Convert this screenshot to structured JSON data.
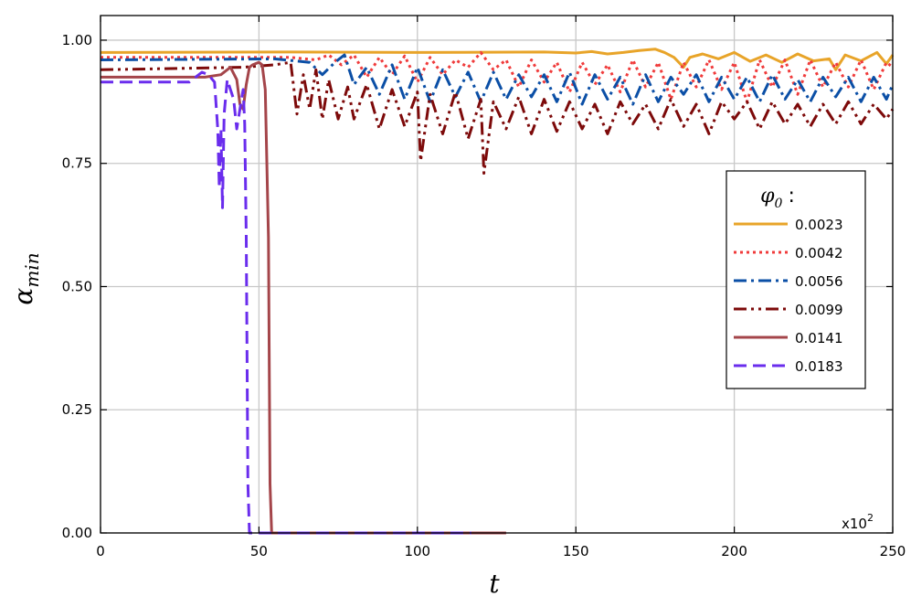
{
  "chart_data": {
    "type": "line",
    "xlabel": "t",
    "ylabel_main": "α",
    "ylabel_sub": "min",
    "x_multiplier_label": "x10",
    "x_multiplier_exp": "2",
    "xlim": [
      0,
      250
    ],
    "ylim": [
      0,
      1.05
    ],
    "xticks": [
      0,
      50,
      100,
      150,
      200,
      250
    ],
    "xtick_labels": [
      "0",
      "50",
      "100",
      "150",
      "200",
      "250"
    ],
    "yticks": [
      0,
      0.25,
      0.5,
      0.75,
      1.0
    ],
    "ytick_labels": [
      "0.00",
      "0.25",
      "0.50",
      "0.75",
      "1.00"
    ],
    "grid": true,
    "legend": {
      "title_main": "φ",
      "title_sub": "0",
      "title_suffix": ":",
      "placement": "right"
    },
    "series": [
      {
        "name": "0.0023",
        "color": "#e8a429",
        "dash": "solid",
        "x": [
          0,
          60,
          100,
          140,
          150,
          155,
          160,
          165,
          170,
          175,
          178,
          181,
          184,
          186,
          190,
          195,
          200,
          205,
          210,
          215,
          220,
          225,
          230,
          232,
          235,
          240,
          245,
          248,
          250
        ],
        "y": [
          0.975,
          0.976,
          0.975,
          0.976,
          0.974,
          0.977,
          0.972,
          0.975,
          0.979,
          0.982,
          0.975,
          0.965,
          0.945,
          0.965,
          0.972,
          0.962,
          0.975,
          0.957,
          0.97,
          0.955,
          0.972,
          0.958,
          0.962,
          0.94,
          0.97,
          0.958,
          0.975,
          0.952,
          0.97
        ]
      },
      {
        "name": "0.0042",
        "color": "#f03b3b",
        "dash": "dot",
        "x": [
          0,
          60,
          68,
          72,
          76,
          80,
          84,
          88,
          92,
          96,
          100,
          104,
          108,
          112,
          116,
          120,
          124,
          128,
          132,
          136,
          140,
          144,
          148,
          152,
          156,
          160,
          164,
          168,
          172,
          176,
          180,
          184,
          188,
          192,
          196,
          200,
          204,
          208,
          212,
          216,
          220,
          224,
          228,
          232,
          236,
          240,
          244,
          248,
          250
        ],
        "y": [
          0.965,
          0.965,
          0.96,
          0.97,
          0.95,
          0.97,
          0.925,
          0.965,
          0.93,
          0.968,
          0.915,
          0.965,
          0.93,
          0.96,
          0.945,
          0.975,
          0.94,
          0.96,
          0.905,
          0.96,
          0.915,
          0.955,
          0.895,
          0.955,
          0.91,
          0.95,
          0.895,
          0.96,
          0.905,
          0.955,
          0.88,
          0.955,
          0.905,
          0.96,
          0.9,
          0.955,
          0.875,
          0.96,
          0.905,
          0.96,
          0.89,
          0.96,
          0.905,
          0.955,
          0.905,
          0.96,
          0.9,
          0.955,
          0.945
        ]
      },
      {
        "name": "0.0056",
        "color": "#0b4fa6",
        "dash": "dashdot",
        "x": [
          0,
          55,
          66,
          70,
          74,
          77,
          80,
          84,
          88,
          92,
          96,
          100,
          104,
          108,
          112,
          116,
          120,
          124,
          128,
          132,
          136,
          140,
          144,
          148,
          152,
          156,
          160,
          164,
          168,
          172,
          176,
          180,
          184,
          188,
          192,
          196,
          200,
          204,
          208,
          212,
          216,
          220,
          224,
          228,
          232,
          236,
          240,
          244,
          248,
          250
        ],
        "y": [
          0.96,
          0.962,
          0.955,
          0.93,
          0.955,
          0.97,
          0.91,
          0.945,
          0.89,
          0.95,
          0.88,
          0.945,
          0.875,
          0.94,
          0.885,
          0.935,
          0.875,
          0.935,
          0.88,
          0.93,
          0.885,
          0.93,
          0.875,
          0.935,
          0.87,
          0.93,
          0.88,
          0.925,
          0.87,
          0.93,
          0.875,
          0.925,
          0.89,
          0.93,
          0.875,
          0.925,
          0.88,
          0.925,
          0.875,
          0.93,
          0.88,
          0.92,
          0.875,
          0.925,
          0.885,
          0.925,
          0.875,
          0.925,
          0.88,
          0.91
        ]
      },
      {
        "name": "0.0099",
        "color": "#7d0a0a",
        "dash": "dashdotdot",
        "x": [
          0,
          45,
          55,
          60,
          62,
          64,
          66,
          68,
          70,
          72,
          75,
          78,
          80,
          84,
          88,
          92,
          96,
          100,
          101,
          104,
          108,
          112,
          116,
          120,
          121,
          124,
          128,
          132,
          136,
          140,
          144,
          148,
          152,
          156,
          160,
          164,
          168,
          172,
          176,
          180,
          184,
          188,
          192,
          196,
          200,
          204,
          208,
          212,
          216,
          220,
          224,
          228,
          232,
          236,
          240,
          244,
          248,
          250
        ],
        "y": [
          0.94,
          0.945,
          0.95,
          0.955,
          0.85,
          0.93,
          0.86,
          0.94,
          0.84,
          0.92,
          0.84,
          0.905,
          0.84,
          0.91,
          0.82,
          0.9,
          0.825,
          0.895,
          0.755,
          0.89,
          0.81,
          0.895,
          0.8,
          0.88,
          0.73,
          0.875,
          0.82,
          0.885,
          0.81,
          0.88,
          0.815,
          0.875,
          0.82,
          0.87,
          0.81,
          0.875,
          0.83,
          0.87,
          0.82,
          0.88,
          0.825,
          0.87,
          0.81,
          0.875,
          0.84,
          0.875,
          0.82,
          0.875,
          0.83,
          0.87,
          0.825,
          0.87,
          0.83,
          0.875,
          0.83,
          0.87,
          0.84,
          0.86
        ]
      },
      {
        "name": "0.0141",
        "color": "#a4454a",
        "dash": "solid",
        "x": [
          0,
          33,
          38,
          41,
          43,
          44,
          45,
          46,
          47,
          48,
          50,
          51,
          52,
          53,
          53.5,
          54,
          128
        ],
        "y": [
          0.925,
          0.925,
          0.93,
          0.945,
          0.92,
          0.87,
          0.86,
          0.91,
          0.945,
          0.95,
          0.955,
          0.95,
          0.9,
          0.6,
          0.1,
          0,
          0
        ]
      },
      {
        "name": "0.0183",
        "color": "#6a2ded",
        "dash": "dash",
        "x": [
          0,
          28,
          32,
          34,
          36,
          37,
          37.5,
          38,
          38.5,
          39,
          40,
          41,
          42,
          43,
          44,
          45,
          45.5,
          46,
          46.5,
          47,
          117
        ],
        "y": [
          0.915,
          0.915,
          0.935,
          0.93,
          0.915,
          0.82,
          0.7,
          0.82,
          0.66,
          0.85,
          0.92,
          0.9,
          0.88,
          0.82,
          0.86,
          0.9,
          0.83,
          0.6,
          0.1,
          0,
          0
        ]
      }
    ]
  }
}
